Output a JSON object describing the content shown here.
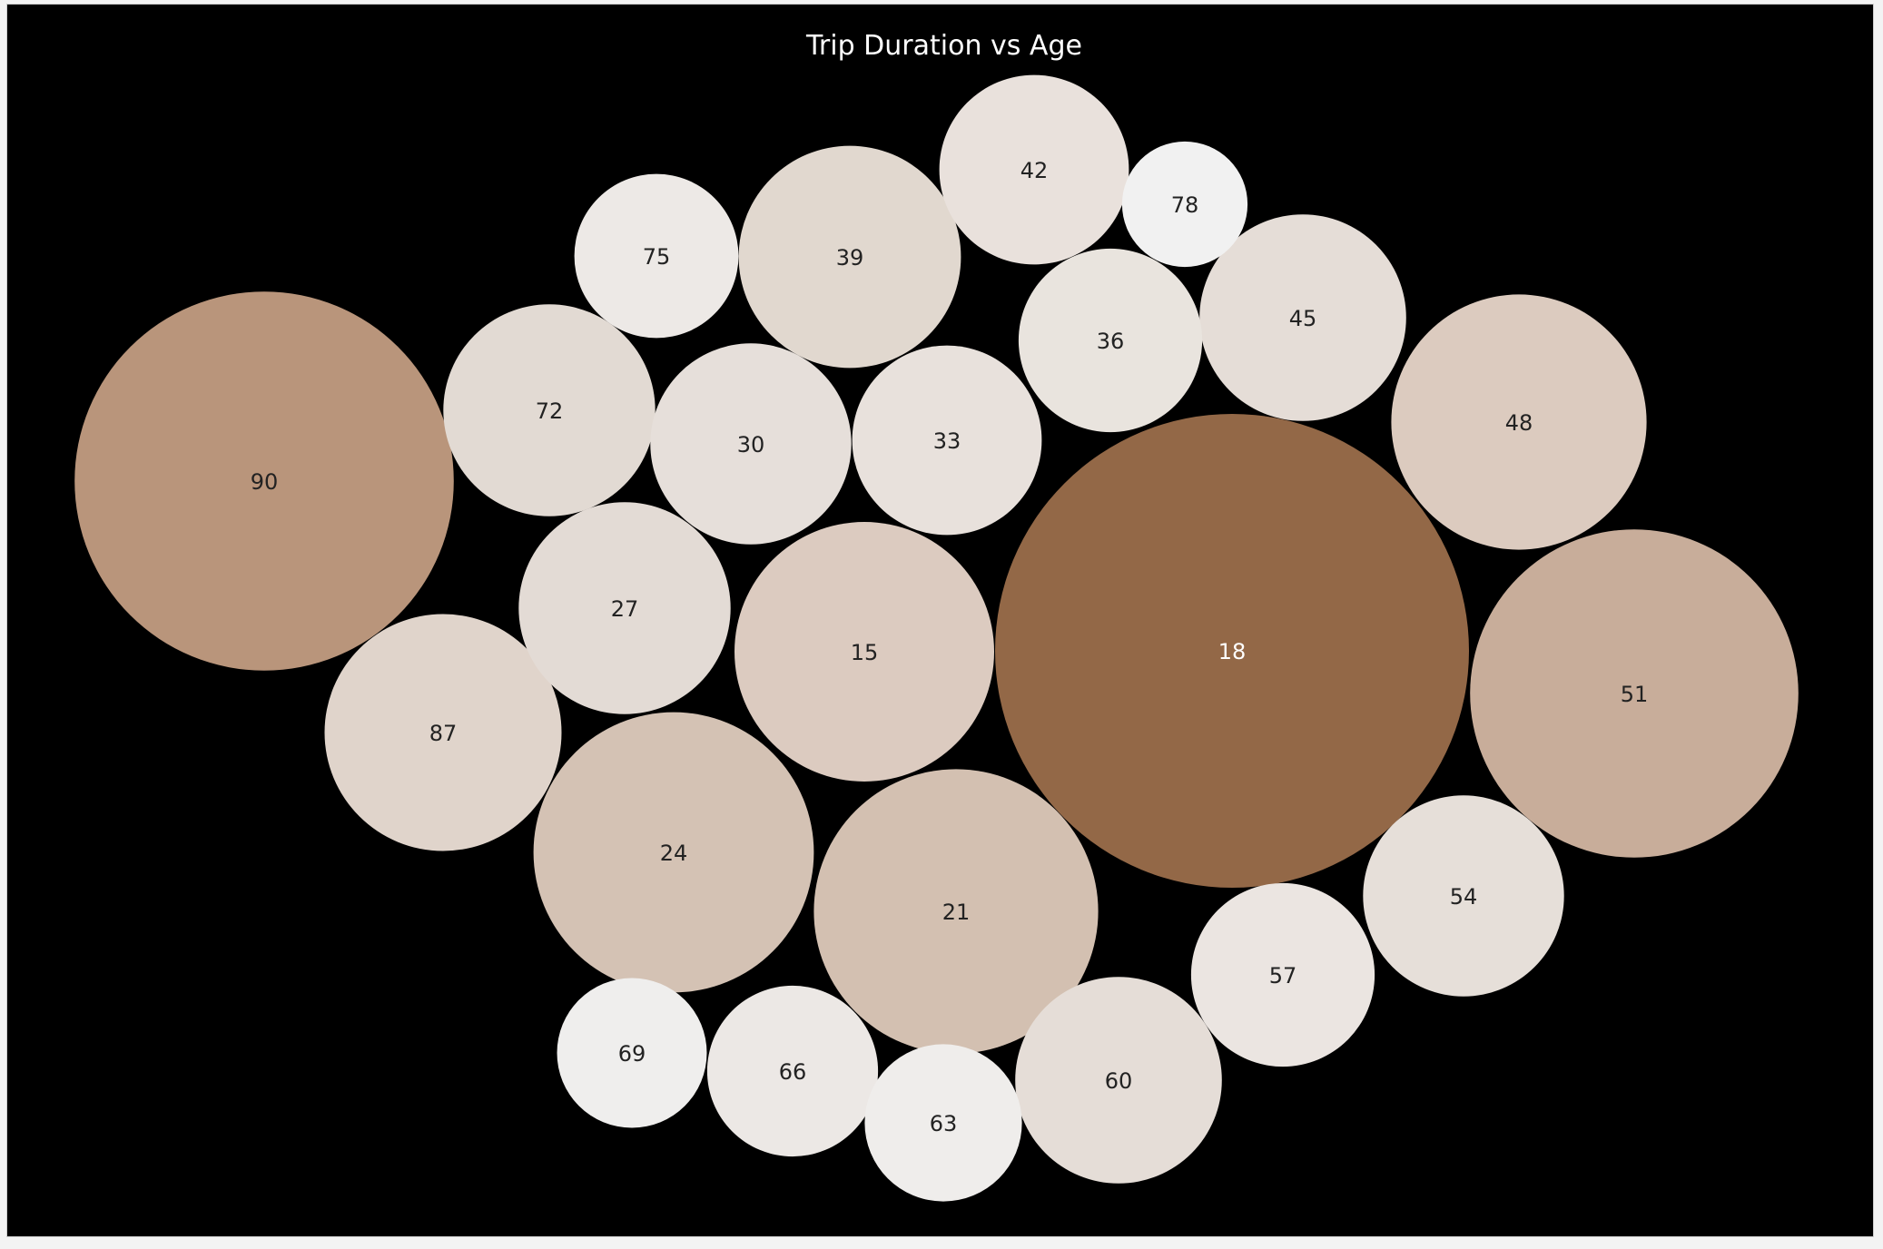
{
  "chart_data": {
    "type": "packed-bubble",
    "title": "Trip Duration vs Age",
    "size_measure": "Trip Duration",
    "label_field": "Age",
    "bubbles": [
      {
        "label": "90",
        "relative_size": 0.64,
        "color": "#b9957b"
      },
      {
        "label": "18",
        "relative_size": 1.0,
        "color": "#936847"
      },
      {
        "label": "51",
        "relative_size": 0.48,
        "color": "#c8ad9a"
      },
      {
        "label": "21",
        "relative_size": 0.36,
        "color": "#d3c0b1"
      },
      {
        "label": "24",
        "relative_size": 0.35,
        "color": "#d4c2b4"
      },
      {
        "label": "15",
        "relative_size": 0.3,
        "color": "#dccbc0"
      },
      {
        "label": "48",
        "relative_size": 0.29,
        "color": "#dccbbf"
      },
      {
        "label": "87",
        "relative_size": 0.25,
        "color": "#e0d4cb"
      },
      {
        "label": "39",
        "relative_size": 0.22,
        "color": "#e1d8cf"
      },
      {
        "label": "72",
        "relative_size": 0.2,
        "color": "#e2dad3"
      },
      {
        "label": "27",
        "relative_size": 0.2,
        "color": "#e3dbd5"
      },
      {
        "label": "45",
        "relative_size": 0.19,
        "color": "#e5ddd7"
      },
      {
        "label": "60",
        "relative_size": 0.19,
        "color": "#e5ddd7"
      },
      {
        "label": "30",
        "relative_size": 0.18,
        "color": "#e6dfda"
      },
      {
        "label": "54",
        "relative_size": 0.18,
        "color": "#e6dfd9"
      },
      {
        "label": "33",
        "relative_size": 0.16,
        "color": "#e8e1dc"
      },
      {
        "label": "42",
        "relative_size": 0.16,
        "color": "#e9e1dc"
      },
      {
        "label": "36",
        "relative_size": 0.15,
        "color": "#e9e4de"
      },
      {
        "label": "57",
        "relative_size": 0.15,
        "color": "#ebe5e1"
      },
      {
        "label": "66",
        "relative_size": 0.13,
        "color": "#ece8e5"
      },
      {
        "label": "75",
        "relative_size": 0.12,
        "color": "#ede9e6"
      },
      {
        "label": "63",
        "relative_size": 0.11,
        "color": "#efedeb"
      },
      {
        "label": "69",
        "relative_size": 0.1,
        "color": "#efeeed"
      },
      {
        "label": "78",
        "relative_size": 0.07,
        "color": "#f1f1f1"
      }
    ],
    "label_color_light": "#ffffff",
    "label_color_dark": "#222222",
    "background": "#000000"
  }
}
